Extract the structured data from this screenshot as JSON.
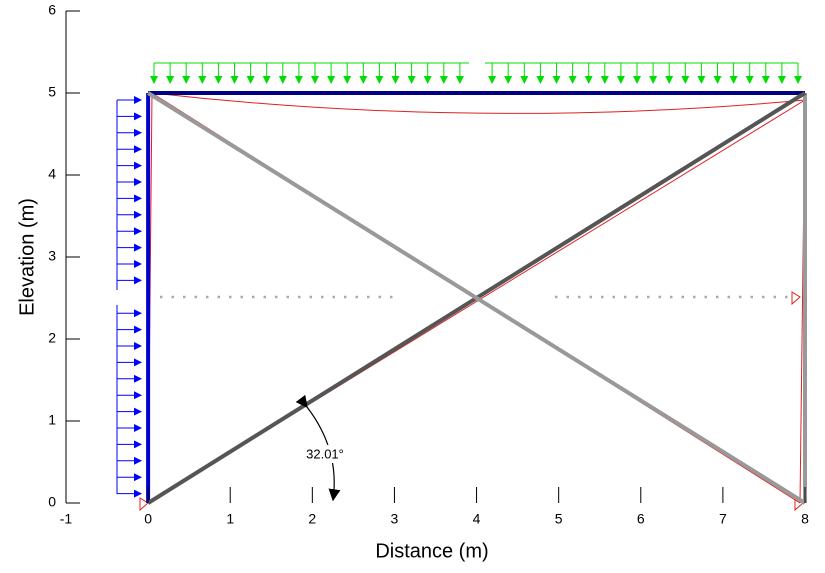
{
  "chart_data": {
    "type": "frame",
    "x_label": "Distance (m)",
    "y_label": "Elevation (m)",
    "xlim": [
      -1,
      8
    ],
    "ylim": [
      0,
      6
    ],
    "xticks": [
      -1,
      0,
      1,
      2,
      3,
      4,
      5,
      6,
      7,
      8
    ],
    "yticks": [
      0,
      1,
      2,
      3,
      4,
      5,
      6
    ],
    "members": [
      {
        "x": [
          0,
          8
        ],
        "y": [
          5,
          5
        ],
        "color": "#000080"
      },
      {
        "x": [
          0,
          0
        ],
        "y": [
          0,
          5
        ],
        "color": "#0000cc"
      },
      {
        "x": [
          8,
          8
        ],
        "y": [
          0,
          5
        ],
        "color": "#999999"
      },
      {
        "x": [
          0,
          8
        ],
        "y": [
          0,
          5
        ],
        "color": "#555555"
      },
      {
        "x": [
          0,
          8
        ],
        "y": [
          5,
          0
        ],
        "color": "#999999"
      }
    ],
    "annotation": "32.01°"
  }
}
